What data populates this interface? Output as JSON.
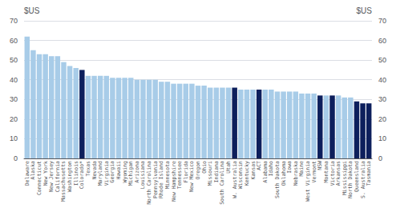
{
  "chart_data": {
    "type": "bar",
    "ylabel": "$US",
    "y2label": "$US",
    "categories": [
      "Delaware",
      "Alaska",
      "Connecticut",
      "New York",
      "New Jersey",
      "California",
      "Massachusetts",
      "Washington",
      "Illinois",
      "Colorado*",
      "Texas",
      "Nevada",
      "Maryland",
      "Virginia",
      "Georgia",
      "Hawaii",
      "Wyoming",
      "Michigan",
      "Arizona",
      "Louisiana",
      "North Carolina",
      "Pennsylvania",
      "Rhode Island",
      "Minnesota",
      "New Hampshire",
      "Tennessee",
      "Florida",
      "New Mexico",
      "Oregon",
      "Ohio",
      "Missouri",
      "Indiana",
      "South Carolina",
      "Utah",
      "W. Australia",
      "Wisconsin",
      "Kentucky",
      "Kansas",
      "ACT",
      "Alabama",
      "Idaho",
      "South Dakota",
      "Oklahoma",
      "Iowa",
      "Nebraska",
      "Maine",
      "West Virginia",
      "Vermont",
      "NSW",
      "Montana",
      "Victoria",
      "Arkansas",
      "Mississippi",
      "North Dakota",
      "Queensland",
      "S. Australia",
      "Tasmania"
    ],
    "values": [
      62,
      55,
      53,
      53,
      52,
      52,
      49,
      47,
      46,
      45,
      42,
      42,
      42,
      42,
      41,
      41,
      41,
      41,
      40,
      40,
      40,
      40,
      39,
      39,
      38,
      38,
      38,
      38,
      37,
      37,
      36,
      36,
      36,
      36,
      36,
      35,
      35,
      35,
      35,
      35,
      35,
      34,
      34,
      34,
      34,
      33,
      33,
      33,
      32,
      32,
      32,
      32,
      31,
      31,
      29,
      28,
      28
    ],
    "colors": [
      "#a8cce8",
      "#a8cce8",
      "#a8cce8",
      "#a8cce8",
      "#a8cce8",
      "#a8cce8",
      "#a8cce8",
      "#a8cce8",
      "#a8cce8",
      "#0d1f5c",
      "#a8cce8",
      "#a8cce8",
      "#a8cce8",
      "#a8cce8",
      "#a8cce8",
      "#a8cce8",
      "#a8cce8",
      "#a8cce8",
      "#a8cce8",
      "#a8cce8",
      "#a8cce8",
      "#a8cce8",
      "#a8cce8",
      "#a8cce8",
      "#a8cce8",
      "#a8cce8",
      "#a8cce8",
      "#a8cce8",
      "#a8cce8",
      "#a8cce8",
      "#a8cce8",
      "#a8cce8",
      "#a8cce8",
      "#a8cce8",
      "#0d1f5c",
      "#a8cce8",
      "#a8cce8",
      "#a8cce8",
      "#0d1f5c",
      "#a8cce8",
      "#a8cce8",
      "#a8cce8",
      "#a8cce8",
      "#a8cce8",
      "#a8cce8",
      "#a8cce8",
      "#a8cce8",
      "#a8cce8",
      "#0d1f5c",
      "#a8cce8",
      "#0d1f5c",
      "#a8cce8",
      "#a8cce8",
      "#a8cce8",
      "#0d1f5c",
      "#0d1f5c",
      "#0d1f5c"
    ],
    "ylim": [
      0,
      70
    ],
    "yticks": [
      0,
      10,
      20,
      30,
      40,
      50,
      60,
      70
    ],
    "y2lim": [
      0,
      70
    ],
    "y2ticks": [
      0,
      10,
      20,
      30,
      40,
      50,
      60,
      70
    ],
    "grid": true
  }
}
